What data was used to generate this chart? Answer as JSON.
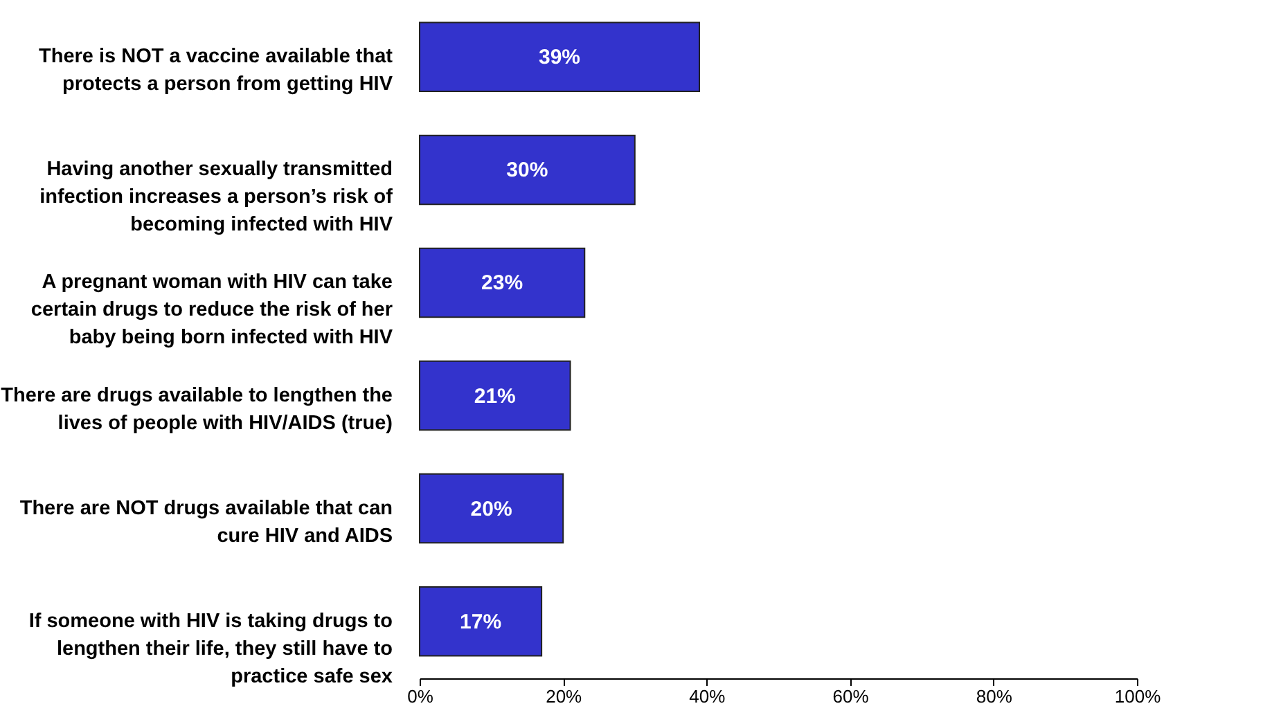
{
  "chart_data": {
    "type": "bar",
    "orientation": "horizontal",
    "categories": [
      "There is NOT a vaccine available that protects a person from getting HIV",
      "Having another sexually transmitted infection increases a person’s risk of becoming infected with HIV",
      "A pregnant woman with HIV can take certain drugs to reduce the risk of her baby being born infected with HIV",
      "There are drugs available to lengthen the lives of people with HIV/AIDS (true)",
      "There are NOT drugs available that can cure HIV and AIDS",
      "If someone with HIV is taking drugs to lengthen their life, they still have to practice safe sex"
    ],
    "values": [
      39,
      30,
      23,
      21,
      20,
      17
    ],
    "value_labels": [
      "39%",
      "30%",
      "23%",
      "21%",
      "20%",
      "17%"
    ],
    "color": "#3333cc",
    "xlim": [
      0,
      100
    ],
    "xticks": [
      {
        "value": 0,
        "label": "0%"
      },
      {
        "value": 20,
        "label": "20%"
      },
      {
        "value": 40,
        "label": "40%"
      },
      {
        "value": 60,
        "label": "60%"
      },
      {
        "value": 80,
        "label": "80%"
      },
      {
        "value": 100,
        "label": "100%"
      }
    ],
    "grid": false
  }
}
